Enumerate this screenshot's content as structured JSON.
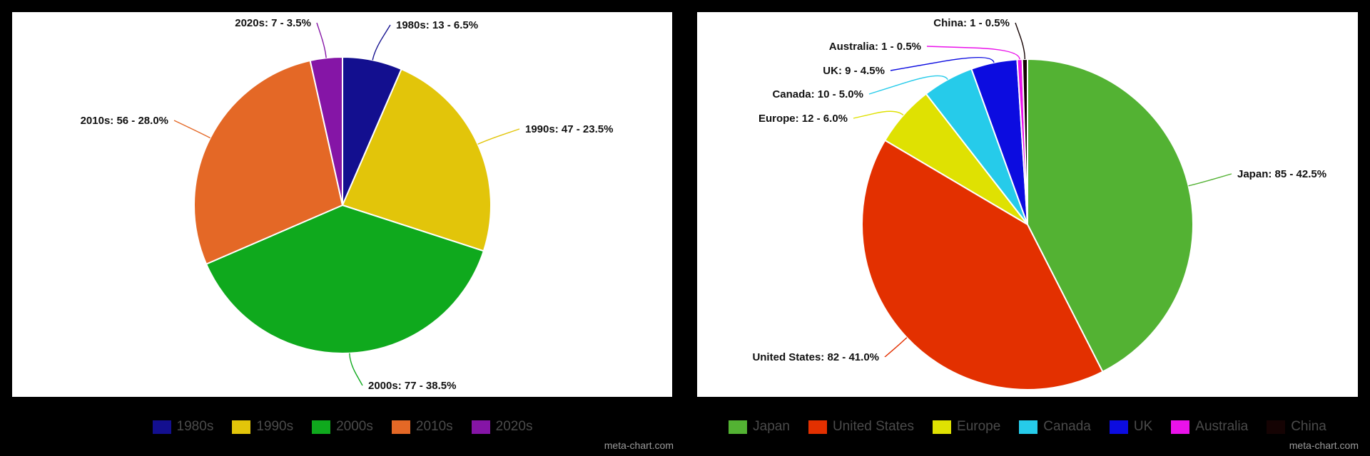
{
  "chart_data": [
    {
      "type": "pie",
      "slices": [
        {
          "name": "1980s",
          "value": 13,
          "percent": 6.5,
          "label": "1980s: 13 - 6.5%",
          "color": "#130f8f"
        },
        {
          "name": "1990s",
          "value": 47,
          "percent": 23.5,
          "label": "1990s: 47 - 23.5%",
          "color": "#e2c50a"
        },
        {
          "name": "2000s",
          "value": 77,
          "percent": 38.5,
          "label": "2000s: 77 - 38.5%",
          "color": "#0fa91d"
        },
        {
          "name": "2010s",
          "value": 56,
          "percent": 28.0,
          "label": "2010s: 56 - 28.0%",
          "color": "#e46826"
        },
        {
          "name": "2020s",
          "value": 7,
          "percent": 3.5,
          "label": "2020s: 7 - 3.5%",
          "color": "#8515a6"
        }
      ],
      "legend": [
        "1980s",
        "1990s",
        "2000s",
        "2010s",
        "2020s"
      ],
      "legend_position": "bottom",
      "watermark": "meta-chart.com"
    },
    {
      "type": "pie",
      "slices": [
        {
          "name": "Japan",
          "value": 85,
          "percent": 42.5,
          "label": "Japan: 85 - 42.5%",
          "color": "#53b233"
        },
        {
          "name": "United States",
          "value": 82,
          "percent": 41.0,
          "label": "United States: 82 - 41.0%",
          "color": "#e33000"
        },
        {
          "name": "Europe",
          "value": 12,
          "percent": 6.0,
          "label": "Europe: 12 - 6.0%",
          "color": "#dfe102"
        },
        {
          "name": "Canada",
          "value": 10,
          "percent": 5.0,
          "label": "Canada: 10 - 5.0%",
          "color": "#26cbea"
        },
        {
          "name": "UK",
          "value": 9,
          "percent": 4.5,
          "label": "UK: 9 - 4.5%",
          "color": "#0c0ce0"
        },
        {
          "name": "Australia",
          "value": 1,
          "percent": 0.5,
          "label": "Australia: 1 - 0.5%",
          "color": "#ea12ea"
        },
        {
          "name": "China",
          "value": 1,
          "percent": 0.5,
          "label": "China: 1 - 0.5%",
          "color": "#150303"
        }
      ],
      "legend": [
        "Japan",
        "United States",
        "Europe",
        "Canada",
        "UK",
        "Australia",
        "China"
      ],
      "legend_position": "bottom",
      "watermark": "meta-chart.com"
    }
  ]
}
